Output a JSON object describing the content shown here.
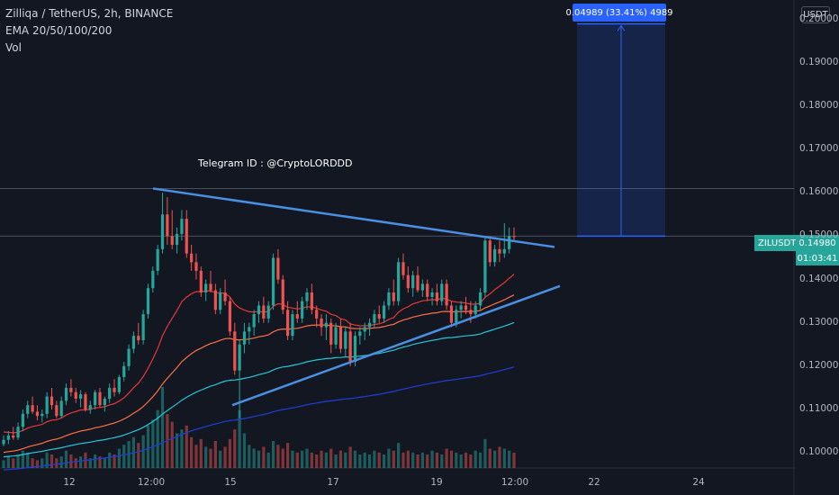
{
  "legend": {
    "symbol_line": "Zilliqa / TetherUS, 2h, BINANCE",
    "ema_line": "EMA 20/50/100/200",
    "vol_line": "Vol"
  },
  "annotation": "Telegram ID : @CryptoLORDDD",
  "currency_label": "USDT",
  "measure_label": "0.04989 (33.41%) 4989",
  "symbol_badge": "ZILUSDT",
  "price_badge": "0.14980",
  "timer_badge": "01:03:41",
  "colors": {
    "background": "#131722",
    "up": "#26a69a",
    "down": "#ef5350",
    "trendline": "#4a90e2",
    "measure": "#2962ff",
    "ema20": "#e53935",
    "ema50": "#ff7043",
    "ema100": "#26c6da",
    "ema200": "#1e3fd8"
  },
  "chart_data": {
    "type": "candlestick",
    "title": "Zilliqa / TetherUS, 2h, BINANCE",
    "y_axis": {
      "ticks": [
        "0.20000",
        "0.19000",
        "0.18000",
        "0.17000",
        "0.16000",
        "0.15000",
        "0.14000",
        "0.13000",
        "0.12000",
        "0.11000",
        "0.10000"
      ],
      "range": [
        0.0965,
        0.2045
      ],
      "scale": "linear",
      "side": "right"
    },
    "x_axis": {
      "ticks": [
        "12",
        "12:00",
        "15",
        "17",
        "19",
        "12:00",
        "22",
        "24"
      ]
    },
    "last_price": 0.1498,
    "candles_ohlc": [
      [
        0.102,
        0.104,
        0.1015,
        0.103
      ],
      [
        0.103,
        0.105,
        0.102,
        0.104
      ],
      [
        0.104,
        0.106,
        0.103,
        0.1035
      ],
      [
        0.1035,
        0.107,
        0.103,
        0.106
      ],
      [
        0.106,
        0.11,
        0.105,
        0.109
      ],
      [
        0.109,
        0.112,
        0.108,
        0.111
      ],
      [
        0.111,
        0.113,
        0.109,
        0.1095
      ],
      [
        0.1095,
        0.111,
        0.1075,
        0.1085
      ],
      [
        0.1085,
        0.11,
        0.107,
        0.109
      ],
      [
        0.109,
        0.114,
        0.108,
        0.113
      ],
      [
        0.113,
        0.115,
        0.11,
        0.111
      ],
      [
        0.111,
        0.112,
        0.108,
        0.1085
      ],
      [
        0.1085,
        0.113,
        0.108,
        0.112
      ],
      [
        0.112,
        0.116,
        0.111,
        0.115
      ],
      [
        0.115,
        0.117,
        0.113,
        0.114
      ],
      [
        0.114,
        0.115,
        0.1115,
        0.1125
      ],
      [
        0.1125,
        0.1145,
        0.1105,
        0.1135
      ],
      [
        0.1135,
        0.114,
        0.1095,
        0.11
      ],
      [
        0.11,
        0.112,
        0.109,
        0.111
      ],
      [
        0.111,
        0.1145,
        0.11,
        0.114
      ],
      [
        0.114,
        0.115,
        0.1105,
        0.111
      ],
      [
        0.111,
        0.113,
        0.1095,
        0.1125
      ],
      [
        0.1125,
        0.116,
        0.1115,
        0.115
      ],
      [
        0.115,
        0.117,
        0.113,
        0.114
      ],
      [
        0.114,
        0.118,
        0.1135,
        0.1175
      ],
      [
        0.1175,
        0.121,
        0.1165,
        0.12
      ],
      [
        0.12,
        0.125,
        0.119,
        0.124
      ],
      [
        0.124,
        0.128,
        0.123,
        0.127
      ],
      [
        0.127,
        0.13,
        0.125,
        0.126
      ],
      [
        0.126,
        0.133,
        0.125,
        0.132
      ],
      [
        0.132,
        0.139,
        0.131,
        0.138
      ],
      [
        0.138,
        0.143,
        0.137,
        0.142
      ],
      [
        0.142,
        0.148,
        0.141,
        0.147
      ],
      [
        0.147,
        0.16,
        0.146,
        0.155
      ],
      [
        0.155,
        0.159,
        0.148,
        0.15
      ],
      [
        0.15,
        0.156,
        0.147,
        0.148
      ],
      [
        0.148,
        0.152,
        0.146,
        0.1505
      ],
      [
        0.1505,
        0.156,
        0.149,
        0.154
      ],
      [
        0.154,
        0.156,
        0.145,
        0.146
      ],
      [
        0.146,
        0.148,
        0.142,
        0.144
      ],
      [
        0.144,
        0.146,
        0.14,
        0.142
      ],
      [
        0.142,
        0.143,
        0.136,
        0.137
      ],
      [
        0.137,
        0.14,
        0.135,
        0.139
      ],
      [
        0.139,
        0.142,
        0.137,
        0.1375
      ],
      [
        0.1375,
        0.139,
        0.132,
        0.133
      ],
      [
        0.133,
        0.138,
        0.132,
        0.137
      ],
      [
        0.137,
        0.14,
        0.134,
        0.135
      ],
      [
        0.135,
        0.136,
        0.127,
        0.128
      ],
      [
        0.128,
        0.13,
        0.118,
        0.119
      ],
      [
        0.119,
        0.126,
        0.108,
        0.125
      ],
      [
        0.125,
        0.13,
        0.123,
        0.128
      ],
      [
        0.128,
        0.13,
        0.125,
        0.129
      ],
      [
        0.129,
        0.133,
        0.127,
        0.132
      ],
      [
        0.132,
        0.135,
        0.13,
        0.134
      ],
      [
        0.134,
        0.136,
        0.13,
        0.131
      ],
      [
        0.131,
        0.135,
        0.13,
        0.134
      ],
      [
        0.134,
        0.146,
        0.133,
        0.145
      ],
      [
        0.145,
        0.147,
        0.139,
        0.14
      ],
      [
        0.14,
        0.141,
        0.132,
        0.133
      ],
      [
        0.133,
        0.135,
        0.126,
        0.127
      ],
      [
        0.127,
        0.133,
        0.126,
        0.132
      ],
      [
        0.132,
        0.135,
        0.13,
        0.131
      ],
      [
        0.131,
        0.136,
        0.13,
        0.135
      ],
      [
        0.135,
        0.138,
        0.133,
        0.137
      ],
      [
        0.137,
        0.139,
        0.132,
        0.133
      ],
      [
        0.133,
        0.134,
        0.129,
        0.131
      ],
      [
        0.131,
        0.132,
        0.127,
        0.129
      ],
      [
        0.129,
        0.132,
        0.126,
        0.13
      ],
      [
        0.13,
        0.131,
        0.123,
        0.125
      ],
      [
        0.125,
        0.13,
        0.124,
        0.129
      ],
      [
        0.129,
        0.131,
        0.123,
        0.124
      ],
      [
        0.124,
        0.129,
        0.122,
        0.128
      ],
      [
        0.128,
        0.13,
        0.12,
        0.121
      ],
      [
        0.121,
        0.128,
        0.12,
        0.127
      ],
      [
        0.127,
        0.129,
        0.125,
        0.128
      ],
      [
        0.128,
        0.13,
        0.126,
        0.129
      ],
      [
        0.129,
        0.131,
        0.127,
        0.13
      ],
      [
        0.13,
        0.133,
        0.129,
        0.132
      ],
      [
        0.132,
        0.134,
        0.13,
        0.131
      ],
      [
        0.131,
        0.135,
        0.13,
        0.134
      ],
      [
        0.134,
        0.138,
        0.133,
        0.137
      ],
      [
        0.137,
        0.14,
        0.134,
        0.135
      ],
      [
        0.135,
        0.145,
        0.134,
        0.144
      ],
      [
        0.144,
        0.146,
        0.14,
        0.141
      ],
      [
        0.141,
        0.143,
        0.137,
        0.138
      ],
      [
        0.138,
        0.142,
        0.136,
        0.141
      ],
      [
        0.141,
        0.143,
        0.137,
        0.1375
      ],
      [
        0.1375,
        0.14,
        0.136,
        0.139
      ],
      [
        0.139,
        0.14,
        0.135,
        0.136
      ],
      [
        0.136,
        0.138,
        0.134,
        0.137
      ],
      [
        0.137,
        0.139,
        0.134,
        0.135
      ],
      [
        0.135,
        0.14,
        0.134,
        0.139
      ],
      [
        0.139,
        0.14,
        0.133,
        0.134
      ],
      [
        0.134,
        0.135,
        0.129,
        0.13
      ],
      [
        0.13,
        0.134,
        0.129,
        0.133
      ],
      [
        0.133,
        0.135,
        0.131,
        0.134
      ],
      [
        0.134,
        0.136,
        0.132,
        0.133
      ],
      [
        0.133,
        0.135,
        0.13,
        0.132
      ],
      [
        0.132,
        0.135,
        0.131,
        0.134
      ],
      [
        0.134,
        0.138,
        0.133,
        0.137
      ],
      [
        0.137,
        0.15,
        0.136,
        0.149
      ],
      [
        0.149,
        0.15,
        0.143,
        0.144
      ],
      [
        0.144,
        0.148,
        0.143,
        0.147
      ],
      [
        0.147,
        0.149,
        0.144,
        0.146
      ],
      [
        0.146,
        0.153,
        0.145,
        0.147
      ],
      [
        0.147,
        0.152,
        0.146,
        0.15
      ],
      [
        0.15,
        0.152,
        0.149,
        0.1498
      ]
    ],
    "volumes": [
      4,
      6,
      5,
      7,
      9,
      8,
      5,
      4,
      5,
      8,
      7,
      5,
      6,
      9,
      7,
      5,
      6,
      8,
      5,
      7,
      6,
      5,
      8,
      7,
      10,
      12,
      14,
      16,
      13,
      17,
      22,
      25,
      30,
      42,
      28,
      24,
      18,
      20,
      22,
      16,
      12,
      15,
      11,
      10,
      14,
      9,
      11,
      15,
      20,
      30,
      18,
      12,
      10,
      9,
      11,
      8,
      14,
      12,
      10,
      13,
      9,
      8,
      9,
      10,
      8,
      7,
      9,
      8,
      10,
      7,
      9,
      8,
      11,
      9,
      7,
      8,
      7,
      9,
      8,
      7,
      10,
      9,
      13,
      8,
      9,
      8,
      7,
      8,
      7,
      9,
      8,
      7,
      10,
      9,
      8,
      7,
      8,
      7,
      9,
      8,
      15,
      10,
      9,
      11,
      10,
      9,
      8
    ],
    "ema_lines": [
      {
        "name": "EMA 20",
        "color": "#e53935"
      },
      {
        "name": "EMA 50",
        "color": "#ff7043"
      },
      {
        "name": "EMA 100",
        "color": "#26c6da"
      },
      {
        "name": "EMA 200",
        "color": "#1e3fd8"
      }
    ],
    "horizontal_levels": [
      0.161,
      0.15
    ],
    "trendlines": [
      {
        "from": {
          "x": "12:00",
          "y": 0.161
        },
        "to": {
          "x": "beyond last bar",
          "y": 0.1475
        }
      },
      {
        "from": {
          "x": "15",
          "y": 0.111
        },
        "to": {
          "x": "beyond last bar",
          "y": 0.1385
        }
      }
    ],
    "measure_box": {
      "from_price": 0.15,
      "to_price": 0.199,
      "change": "0.04989 (33.41%) 4989"
    }
  }
}
